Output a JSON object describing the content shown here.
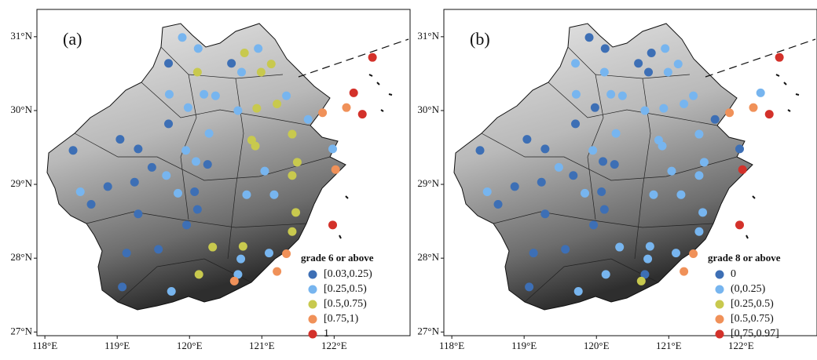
{
  "chart_data": [
    {
      "type": "scatter",
      "title": "(a)",
      "legend_title": "grade 6 or above",
      "legend": "lower right",
      "xlim": [
        117.89,
        123.05
      ],
      "ylim": [
        26.95,
        31.37
      ],
      "xticks": [
        {
          "value": 118,
          "label": "118°E"
        },
        {
          "value": 119,
          "label": "119°E"
        },
        {
          "value": 120,
          "label": "120°E"
        },
        {
          "value": 121,
          "label": "121°E"
        },
        {
          "value": 122,
          "label": "122°E"
        }
      ],
      "yticks": [
        {
          "value": 27,
          "label": "27°N"
        },
        {
          "value": 28,
          "label": "28°N"
        },
        {
          "value": 29,
          "label": "29°N"
        },
        {
          "value": 30,
          "label": "30°N"
        },
        {
          "value": 31,
          "label": "31°N"
        }
      ],
      "series": [
        {
          "name": "[0.03,0.25)",
          "color": "#3d6fb5",
          "x": [
            119.71,
            120.58,
            119.71,
            119.04,
            118.39,
            119.29,
            119.48,
            120.25,
            118.87,
            119.24,
            120.07,
            118.64,
            120.11,
            119.29,
            119.96,
            119.57,
            119.13,
            119.07
          ],
          "y": [
            30.64,
            30.64,
            29.82,
            29.61,
            29.46,
            29.48,
            29.23,
            29.27,
            28.97,
            29.03,
            28.9,
            28.73,
            28.66,
            28.6,
            28.45,
            28.12,
            28.07,
            27.61
          ]
        },
        {
          "name": "[0.25,0.5)",
          "color": "#77b5ef",
          "x": [
            119.9,
            120.12,
            120.95,
            120.72,
            119.72,
            120.2,
            120.36,
            121.34,
            119.98,
            120.67,
            121.64,
            120.27,
            119.95,
            121.98,
            120.09,
            119.68,
            121.04,
            118.49,
            119.84,
            120.79,
            121.17,
            120.71,
            121.1,
            120.67,
            119.75
          ],
          "y": [
            30.99,
            30.84,
            30.84,
            30.52,
            30.22,
            30.22,
            30.2,
            30.2,
            30.04,
            30.0,
            29.88,
            29.69,
            29.46,
            29.48,
            29.31,
            29.12,
            29.18,
            28.9,
            28.88,
            28.86,
            28.86,
            27.99,
            28.07,
            27.78,
            27.55
          ]
        },
        {
          "name": "[0.5,0.75)",
          "color": "#c8c94e",
          "x": [
            120.76,
            121.13,
            120.11,
            120.99,
            120.93,
            121.21,
            120.86,
            120.91,
            121.42,
            121.49,
            121.42,
            121.47,
            121.42,
            120.32,
            120.74,
            120.13
          ],
          "y": [
            30.78,
            30.63,
            30.52,
            30.52,
            30.03,
            30.09,
            29.6,
            29.52,
            29.68,
            29.3,
            29.12,
            28.62,
            28.36,
            28.15,
            28.16,
            27.78
          ]
        },
        {
          "name": "[0.75,1)",
          "color": "#f09159",
          "x": [
            121.84,
            122.17,
            122.02,
            121.34,
            121.21,
            120.62
          ],
          "y": [
            29.97,
            30.04,
            29.2,
            28.06,
            27.82,
            27.69
          ]
        },
        {
          "name": "1",
          "color": "#d3312a",
          "x": [
            122.53,
            122.27,
            122.39,
            121.98
          ],
          "y": [
            30.72,
            30.24,
            29.95,
            28.45
          ]
        }
      ]
    },
    {
      "type": "scatter",
      "title": "(b)",
      "legend_title": "grade 8 or above",
      "legend": "lower right",
      "xlim": [
        117.89,
        123.05
      ],
      "ylim": [
        26.95,
        31.37
      ],
      "xticks": [
        {
          "value": 118,
          "label": "118°E"
        },
        {
          "value": 119,
          "label": "119°E"
        },
        {
          "value": 120,
          "label": "120°E"
        },
        {
          "value": 121,
          "label": "121°E"
        },
        {
          "value": 122,
          "label": "122°E"
        }
      ],
      "yticks": [
        {
          "value": 27,
          "label": "27°N"
        },
        {
          "value": 28,
          "label": "28°N"
        },
        {
          "value": 29,
          "label": "29°N"
        },
        {
          "value": 30,
          "label": "30°N"
        },
        {
          "value": 31,
          "label": "31°N"
        }
      ],
      "series": [
        {
          "name": "0",
          "color": "#3d6fb5",
          "x": [
            119.9,
            120.12,
            120.58,
            120.76,
            120.72,
            119.98,
            121.64,
            119.71,
            119.04,
            118.39,
            119.29,
            121.98,
            120.09,
            120.25,
            119.68,
            118.87,
            119.24,
            120.07,
            118.64,
            120.11,
            119.29,
            119.96,
            119.57,
            119.13,
            120.67,
            119.07
          ],
          "y": [
            30.99,
            30.84,
            30.64,
            30.78,
            30.52,
            30.04,
            29.88,
            29.82,
            29.61,
            29.46,
            29.48,
            29.48,
            29.31,
            29.27,
            29.12,
            28.97,
            29.03,
            28.9,
            28.73,
            28.66,
            28.6,
            28.45,
            28.12,
            28.07,
            27.78,
            27.61
          ]
        },
        {
          "name": "(0,0.25)",
          "color": "#77b5ef",
          "x": [
            120.95,
            119.71,
            121.13,
            120.11,
            120.99,
            119.72,
            120.2,
            120.36,
            121.34,
            120.67,
            120.93,
            121.21,
            122.27,
            120.27,
            120.86,
            120.91,
            121.42,
            119.95,
            119.48,
            121.49,
            121.04,
            121.42,
            118.49,
            119.84,
            120.79,
            121.17,
            121.47,
            121.42,
            120.32,
            120.74,
            120.71,
            121.1,
            120.13,
            119.75
          ],
          "y": [
            30.84,
            30.64,
            30.63,
            30.52,
            30.52,
            30.22,
            30.22,
            30.2,
            30.2,
            30.0,
            30.03,
            30.09,
            30.24,
            29.69,
            29.6,
            29.52,
            29.68,
            29.46,
            29.23,
            29.3,
            29.18,
            29.12,
            28.9,
            28.88,
            28.86,
            28.86,
            28.62,
            28.36,
            28.15,
            28.16,
            27.99,
            28.07,
            27.78,
            27.55
          ]
        },
        {
          "name": "[0.25,0.5)",
          "color": "#c8c94e",
          "x": [
            120.62
          ],
          "y": [
            27.69
          ]
        },
        {
          "name": "[0.5,0.75)",
          "color": "#f09159",
          "x": [
            121.84,
            122.17,
            121.34,
            121.21
          ],
          "y": [
            29.97,
            30.04,
            28.06,
            27.82
          ]
        },
        {
          "name": "[0.75,0.97]",
          "color": "#d3312a",
          "x": [
            122.53,
            122.39,
            122.02,
            121.98
          ],
          "y": [
            30.72,
            29.95,
            29.2,
            28.45
          ]
        }
      ]
    }
  ]
}
